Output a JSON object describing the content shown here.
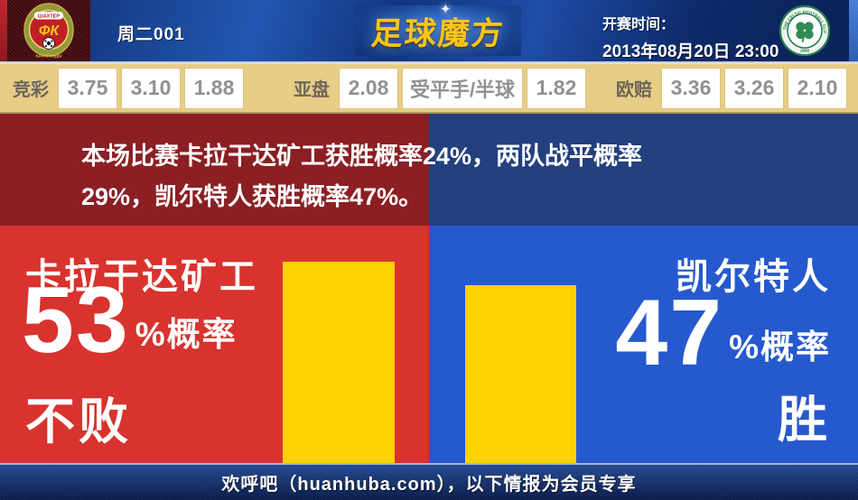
{
  "header": {
    "match_label": "周二001",
    "site_logo_text": "足球魔方",
    "kickoff_label": "开赛时间：",
    "kickoff_time": "2013年08月20日 23:00",
    "home_badge": {
      "top_text": "ШАХТЕР",
      "initials": "ФК",
      "bottom_text": "КАРАГАНДЫ"
    },
    "away_badge": {
      "ring_text": "THE CELTIC FOOTBALL CLUB",
      "year": "1888"
    }
  },
  "odds": {
    "groups": [
      {
        "label": "竞彩",
        "values": [
          "3.75",
          "3.10",
          "1.88"
        ]
      },
      {
        "label": "亚盘",
        "values": [
          "2.08",
          "受平手/半球",
          "1.82"
        ]
      },
      {
        "label": "欧赔",
        "values": [
          "3.36",
          "3.26",
          "2.10"
        ]
      }
    ]
  },
  "summary": {
    "text": "本场比赛卡拉干达矿工获胜概率24%，两队战平概率29%，凯尔特人获胜概率47%。"
  },
  "prediction": {
    "home": {
      "team": "卡拉干达矿工",
      "percent": "53",
      "suffix": "%概率",
      "outcome": "不败",
      "bar_percent": 53
    },
    "away": {
      "team": "凯尔特人",
      "percent": "47",
      "suffix": "%概率",
      "outcome": "胜",
      "bar_percent": 47
    }
  },
  "probabilities": {
    "home_win": 24,
    "draw": 29,
    "away_win": 47,
    "unit": "%"
  },
  "chart_data": {
    "type": "bar",
    "categories": [
      "卡拉干达矿工 不败",
      "凯尔特人 胜"
    ],
    "values": [
      53,
      47
    ],
    "unit": "%",
    "title": ""
  },
  "footer": {
    "text": "欢呼吧（huanhuba.com），以下情报为会员专享"
  },
  "colors": {
    "home_red": "#d8332e",
    "away_blue": "#2559cd",
    "dark_red": "#8b1f24",
    "dark_blue": "#24407e",
    "bar_yellow": "#fdd200",
    "odds_bar_bg": "#e7cd86",
    "header_navy": "#0d2a6b",
    "logo_gold": "#f9c513"
  }
}
